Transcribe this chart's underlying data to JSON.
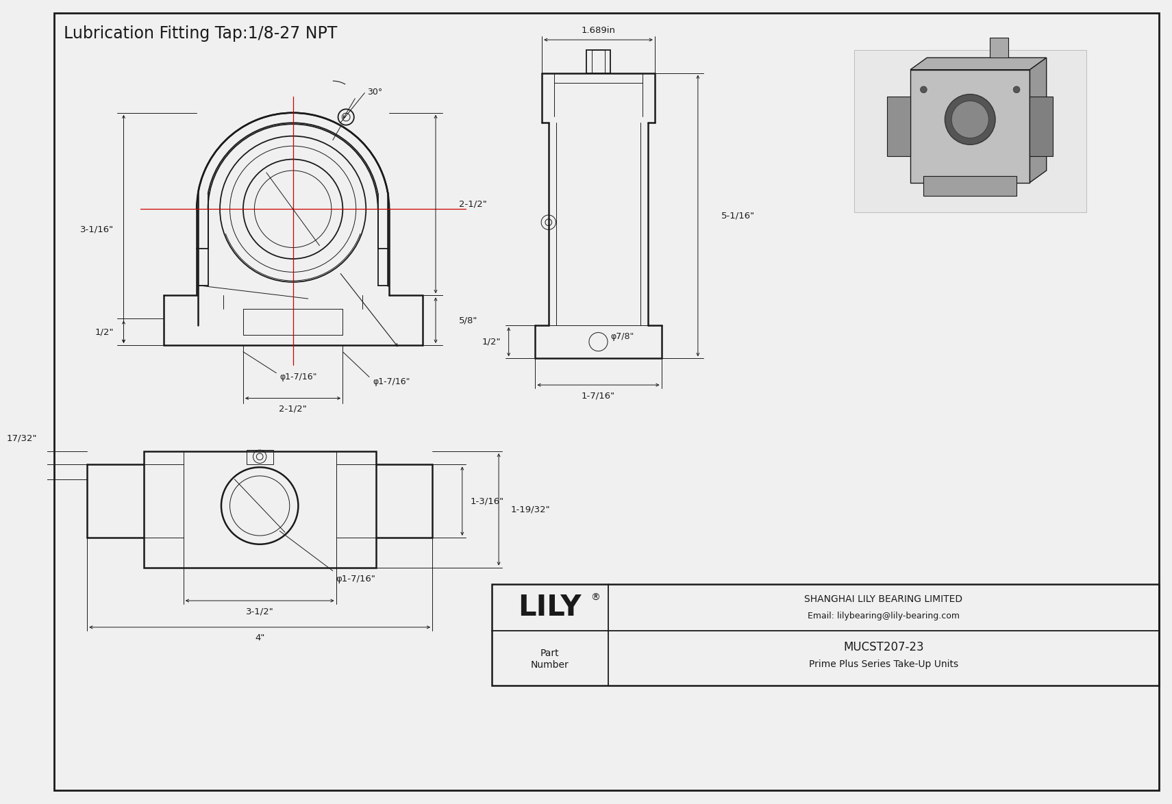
{
  "title": "Lubrication Fitting Tap:1/8-27 NPT",
  "bg_color": "#ffffff",
  "line_color": "#1a1a1a",
  "red_color": "#cc0000",
  "part_number": "MUCST207-23",
  "series": "Prime Plus Series Take-Up Units",
  "company": "SHANGHAI LILY BEARING LIMITED",
  "email": "Email: lilybearing@lily-bearing.com",
  "brand": "LILY",
  "dims": {
    "top_2half": "2-1/2\"",
    "top_5_8": "5/8\"",
    "top_3_1_16": "3-1/16\"",
    "top_half": "1/2\"",
    "top_phi_left": "φ1-7/16\"",
    "top_phi_right": "φ1-7/16\"",
    "top_2half_bot": "2-1/2\"",
    "angle_30": "30°",
    "side_1689": "1.689in",
    "side_5_1_16": "5-1/16\"",
    "side_half": "1/2\"",
    "side_phi_7_8": "φ7/8\"",
    "side_1_7_16": "1-7/16\"",
    "bot_17_32": "17/32\"",
    "bot_1_3_16": "1-3/16\"",
    "bot_1_19_32": "1-19/32\"",
    "bot_phi": "φ1-7/16\"",
    "bot_3_half": "3-1/2\"",
    "bot_4": "4\""
  }
}
